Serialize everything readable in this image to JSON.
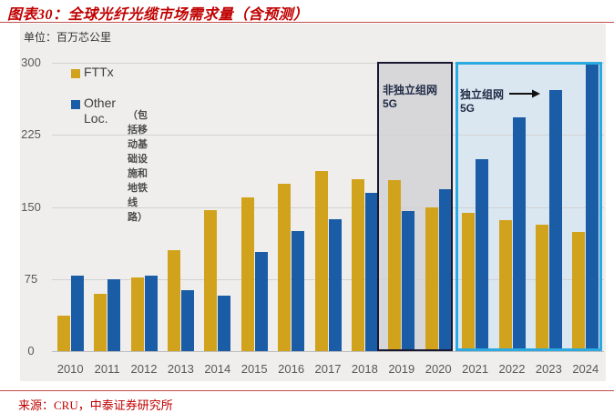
{
  "header": {
    "title": "图表30：全球光纤光缆市场需求量（含预测）"
  },
  "footer": {
    "source": "来源：CRU，中泰证券研究所"
  },
  "chart": {
    "unit_label": "单位：百万芯公里",
    "legend": {
      "fttx_label": "FTTx",
      "other_label_line1": "Other",
      "other_label_line2": "Loc.",
      "other_note": "（包括移动基础设施和地铁线路）"
    },
    "annotations": {
      "nsa_line1": "非独立组网",
      "nsa_line2": "5G",
      "sa_line1": "独立组网",
      "sa_line2": "5G"
    }
  },
  "colors": {
    "accent_red": "#C00000",
    "panel_bg": "#EFEEEC",
    "gridline": "#D2D2D2",
    "tick_text": "#595959",
    "annotation_text": "#1F2A44"
  },
  "chart_data": {
    "type": "bar",
    "title": "全球光纤光缆市场需求量（含预测）",
    "unit": "百万芯公里",
    "xlabel": "",
    "ylabel": "百万芯公里",
    "ylim": [
      0,
      300
    ],
    "yticks": [
      0,
      75,
      150,
      225,
      300
    ],
    "grid": true,
    "legend_position": "top-left",
    "categories": [
      "2010",
      "2011",
      "2012",
      "2013",
      "2014",
      "2015",
      "2016",
      "2017",
      "2018",
      "2019",
      "2020",
      "2021",
      "2022",
      "2023",
      "2024"
    ],
    "series": [
      {
        "name": "FTTx",
        "color": "#D1A31C",
        "values": [
          37,
          60,
          77,
          105,
          147,
          160,
          174,
          187,
          179,
          178,
          150,
          144,
          136,
          132,
          124
        ]
      },
      {
        "name": "Other Loc.",
        "color": "#1A5CA6",
        "values": [
          79,
          75,
          79,
          63,
          58,
          103,
          125,
          137,
          165,
          146,
          168,
          200,
          243,
          272,
          300
        ]
      }
    ],
    "highlight_regions": [
      {
        "key": "nsa",
        "label": "非独立组网 5G",
        "start": "2019",
        "end": "2020",
        "fill": "#D7D7DA",
        "border": "#181830"
      },
      {
        "key": "sa",
        "label": "独立组网 5G",
        "start": "2021",
        "end": "2024",
        "fill": "#DAE7F0",
        "border": "#2BA9E1"
      }
    ]
  }
}
